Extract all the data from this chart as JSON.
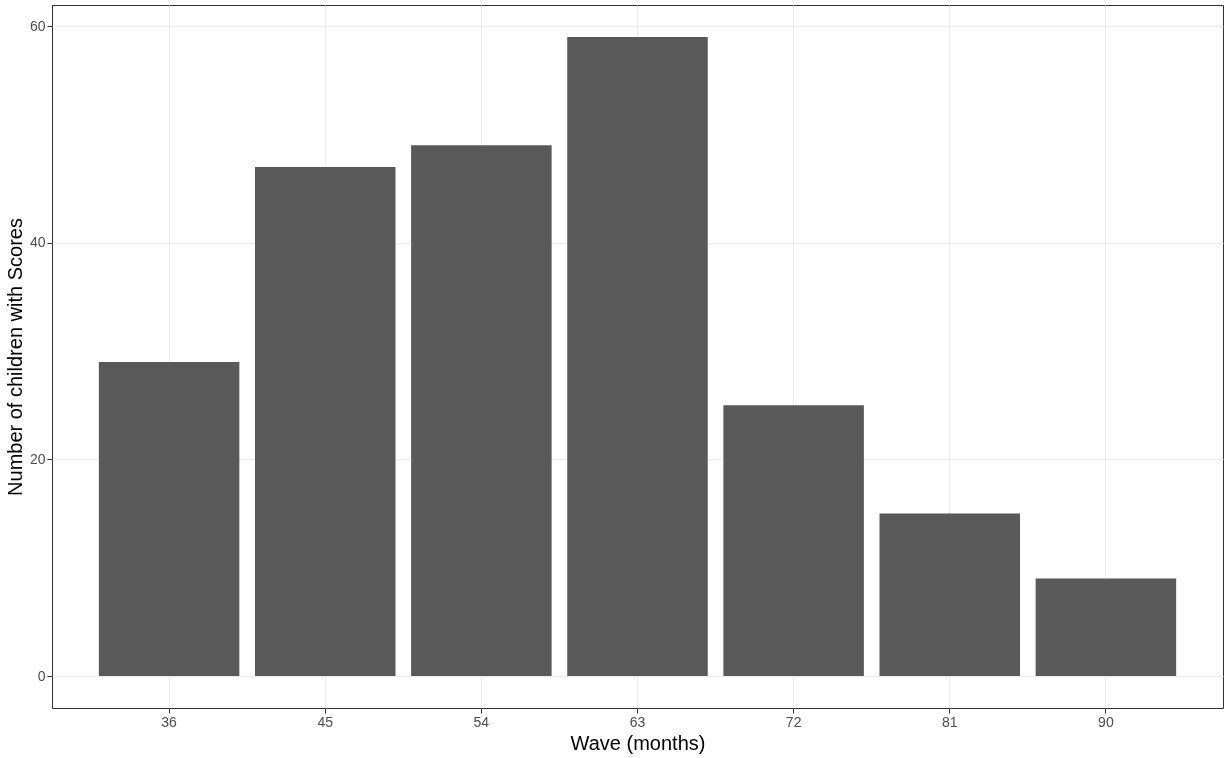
{
  "chart_data": {
    "type": "bar",
    "xlabel": "Wave (months)",
    "ylabel": "Number of children with Scores",
    "categories": [
      "36",
      "45",
      "54",
      "63",
      "72",
      "81",
      "90"
    ],
    "values": [
      29,
      47,
      49,
      59,
      25,
      15,
      9
    ],
    "color": "#595959",
    "ylim": [
      -2.95,
      61.95
    ],
    "yticks": [
      0,
      20,
      40,
      60
    ],
    "grid": true
  }
}
